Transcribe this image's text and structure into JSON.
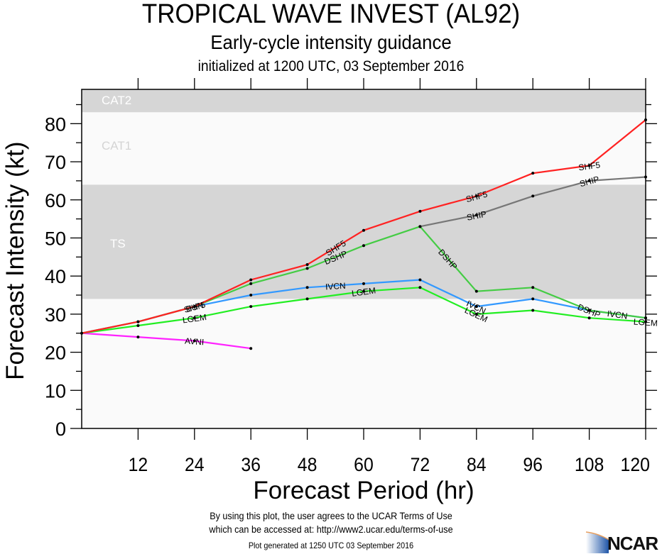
{
  "header": {
    "title": "TROPICAL WAVE INVEST (AL92)",
    "subtitle": "Early-cycle intensity guidance",
    "init_line": "initialized at 1200 UTC, 03 September 2016"
  },
  "footer": {
    "terms_line1": "By using this plot, the user agrees to the UCAR Terms of Use",
    "terms_line2": "which can be accessed at: http://www2.ucar.edu/terms-of-use",
    "generated": "Plot generated at 1250 UTC   03 September 2016",
    "logo_text": "NCAR"
  },
  "chart_data": {
    "type": "line",
    "title": "TROPICAL WAVE INVEST (AL92)",
    "subtitle": "Early-cycle intensity guidance",
    "xlabel": "Forecast Period (hr)",
    "ylabel": "Forecast Intensity (kt)",
    "xlim": [
      0,
      120
    ],
    "ylim": [
      0,
      89
    ],
    "xticks": [
      12,
      24,
      36,
      48,
      60,
      72,
      84,
      96,
      108,
      120
    ],
    "yticks": [
      0,
      10,
      20,
      30,
      40,
      50,
      60,
      70,
      80
    ],
    "grid": false,
    "bands": [
      {
        "name": "TS",
        "from": 34,
        "to": 64,
        "color": "#d6d6d6",
        "label_color": "#ffffff"
      },
      {
        "name": "CAT1",
        "from": 64,
        "to": 83,
        "color": "#fafafa",
        "label_color": "#d4d4d4"
      },
      {
        "name": "CAT2",
        "from": 83,
        "to": 89,
        "color": "#d6d6d6",
        "label_color": "#ffffff"
      }
    ],
    "series": [
      {
        "name": "AVNI",
        "color": "#ff22ff",
        "x": [
          0,
          12,
          24,
          36
        ],
        "values": [
          25,
          24,
          23,
          21
        ],
        "labels": [
          {
            "x": 24,
            "text": "AVNI"
          }
        ]
      },
      {
        "name": "LGEM",
        "color": "#22ee22",
        "x": [
          0,
          12,
          24,
          36,
          48,
          60,
          72,
          84,
          96,
          108,
          120
        ],
        "values": [
          25,
          27,
          29,
          32,
          34,
          36,
          37,
          30,
          31,
          29,
          28
        ],
        "labels": [
          {
            "x": 24,
            "text": "LGEM"
          },
          {
            "x": 60,
            "text": "LGEM"
          },
          {
            "x": 84,
            "text": "LGEM"
          },
          {
            "x": 120,
            "text": "LGEM"
          }
        ]
      },
      {
        "name": "IVCN",
        "color": "#3399ff",
        "x": [
          0,
          12,
          24,
          36,
          48,
          60,
          72,
          84,
          96,
          108,
          120
        ],
        "values": [
          25,
          28,
          32,
          35,
          37,
          38,
          39,
          32,
          34,
          31,
          29
        ],
        "labels": [
          {
            "x": 24,
            "text": "BUN"
          },
          {
            "x": 54,
            "text": "IVCN"
          },
          {
            "x": 84,
            "text": "IVCN"
          },
          {
            "x": 114,
            "text": "IVCN"
          }
        ]
      },
      {
        "name": "DSHP",
        "color": "#44cc44",
        "x": [
          0,
          12,
          24,
          36,
          48,
          60,
          72,
          84,
          96,
          108,
          120
        ],
        "values": [
          25,
          28,
          32,
          38,
          42,
          48,
          53,
          36,
          37,
          31,
          29
        ],
        "labels": [
          {
            "x": 54,
            "text": "DSHP"
          },
          {
            "x": 78,
            "text": "DSHP"
          },
          {
            "x": 108,
            "text": "DSHP"
          }
        ]
      },
      {
        "name": "SHIP",
        "color": "#777777",
        "x": [
          72,
          84,
          96,
          108,
          120
        ],
        "values": [
          53,
          56,
          61,
          65,
          66
        ],
        "labels": [
          {
            "x": 54,
            "text": "SHIP"
          },
          {
            "x": 84,
            "text": "SHIP"
          },
          {
            "x": 108,
            "text": "SHIP"
          }
        ]
      },
      {
        "name": "SHF5",
        "color": "#ff2222",
        "x": [
          0,
          12,
          24,
          36,
          48,
          60,
          72,
          84,
          96,
          108,
          120
        ],
        "values": [
          25,
          28,
          32,
          39,
          43,
          52,
          57,
          61,
          67,
          69,
          81
        ],
        "labels": [
          {
            "x": 24,
            "text": "SHF5"
          },
          {
            "x": 54,
            "text": "SHF5"
          },
          {
            "x": 84,
            "text": "SHF5"
          },
          {
            "x": 108,
            "text": "SHF5"
          }
        ]
      }
    ]
  }
}
